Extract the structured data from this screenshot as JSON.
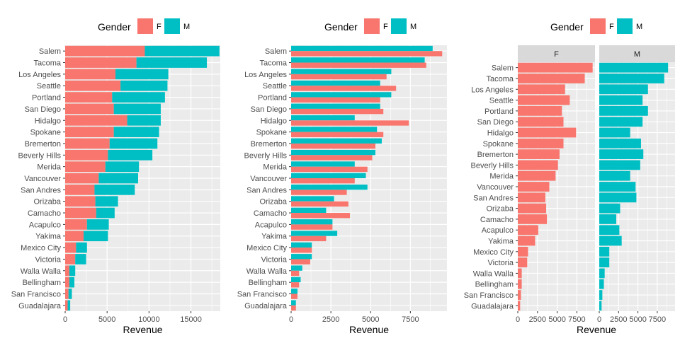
{
  "colors": {
    "F": "#F8766D",
    "M": "#00BFC4",
    "panel": "#EBEBEB",
    "strip": "#D9D9D9",
    "grid": "#FFFFFF",
    "text": "#4D4D4D",
    "title": "#000000"
  },
  "legend": {
    "title": "Gender",
    "keys": [
      "F",
      "M"
    ]
  },
  "chart_data": [
    {
      "type": "bar",
      "orientation": "horizontal",
      "variant": "stacked",
      "xlabel": "Revenue",
      "xlim": [
        0,
        18500
      ],
      "xticks": [
        0,
        5000,
        10000,
        15000
      ],
      "xtick_labels": [
        "0",
        "5000",
        "10000",
        "15000"
      ],
      "categories": [
        "Salem",
        "Tacoma",
        "Los Angeles",
        "Seattle",
        "Portland",
        "San Diego",
        "Hidalgo",
        "Spokane",
        "Bremerton",
        "Beverly Hills",
        "Merida",
        "Vancouver",
        "San Andres",
        "Orizaba",
        "Camacho",
        "Acapulco",
        "Yakima",
        "Mexico City",
        "Victoria",
        "Walla Walla",
        "Bellingham",
        "San Francisco",
        "Guadalajara"
      ],
      "series": [
        {
          "name": "F",
          "values": [
            9500,
            8500,
            6000,
            6600,
            5600,
            5800,
            7400,
            5800,
            5300,
            5100,
            4800,
            4000,
            3500,
            3600,
            3700,
            2600,
            2200,
            1300,
            1200,
            500,
            500,
            400,
            300
          ]
        },
        {
          "name": "M",
          "values": [
            8900,
            8400,
            6300,
            5600,
            6300,
            5600,
            4000,
            5400,
            5700,
            5300,
            4000,
            4700,
            4800,
            2700,
            2200,
            2600,
            2900,
            1300,
            1300,
            700,
            600,
            400,
            300
          ]
        }
      ]
    },
    {
      "type": "bar",
      "orientation": "horizontal",
      "variant": "dodged",
      "xlabel": "Revenue",
      "xlim": [
        0,
        9800
      ],
      "xticks": [
        0,
        2500,
        5000,
        7500
      ],
      "xtick_labels": [
        "0",
        "2500",
        "5000",
        "7500"
      ],
      "categories": [
        "Salem",
        "Tacoma",
        "Los Angeles",
        "Seattle",
        "Portland",
        "San Diego",
        "Hidalgo",
        "Spokane",
        "Bremerton",
        "Beverly Hills",
        "Merida",
        "Vancouver",
        "San Andres",
        "Orizaba",
        "Camacho",
        "Acapulco",
        "Yakima",
        "Mexico City",
        "Victoria",
        "Walla Walla",
        "Bellingham",
        "San Francisco",
        "Guadalajara"
      ],
      "series": [
        {
          "name": "F",
          "values": [
            9500,
            8500,
            6000,
            6600,
            5600,
            5800,
            7400,
            5800,
            5300,
            5100,
            4800,
            4000,
            3500,
            3600,
            3700,
            2600,
            2200,
            1300,
            1200,
            500,
            500,
            400,
            300
          ]
        },
        {
          "name": "M",
          "values": [
            8900,
            8400,
            6300,
            5600,
            6300,
            5600,
            4000,
            5400,
            5700,
            5300,
            4000,
            4700,
            4800,
            2700,
            2200,
            2600,
            2900,
            1300,
            1300,
            700,
            600,
            400,
            300
          ]
        }
      ]
    },
    {
      "type": "bar",
      "orientation": "horizontal",
      "variant": "faceted",
      "facets": [
        "F",
        "M"
      ],
      "xlabel": "Revenue",
      "xlim": [
        0,
        9800
      ],
      "xticks": [
        0,
        2500,
        5000,
        7500
      ],
      "xtick_labels": [
        "0",
        "2500",
        "5000",
        "7500"
      ],
      "categories": [
        "Salem",
        "Tacoma",
        "Los Angeles",
        "Seattle",
        "Portland",
        "San Diego",
        "Hidalgo",
        "Spokane",
        "Bremerton",
        "Beverly Hills",
        "Merida",
        "Vancouver",
        "San Andres",
        "Orizaba",
        "Camacho",
        "Acapulco",
        "Yakima",
        "Mexico City",
        "Victoria",
        "Walla Walla",
        "Bellingham",
        "San Francisco",
        "Guadalajara"
      ],
      "series": [
        {
          "name": "F",
          "values": [
            9500,
            8500,
            6000,
            6600,
            5600,
            5800,
            7400,
            5800,
            5300,
            5100,
            4800,
            4000,
            3500,
            3600,
            3700,
            2600,
            2200,
            1300,
            1200,
            500,
            500,
            400,
            300
          ]
        },
        {
          "name": "M",
          "values": [
            8900,
            8400,
            6300,
            5600,
            6300,
            5600,
            4000,
            5400,
            5700,
            5300,
            4000,
            4700,
            4800,
            2700,
            2200,
            2600,
            2900,
            1300,
            1300,
            700,
            600,
            400,
            300
          ]
        }
      ]
    }
  ]
}
